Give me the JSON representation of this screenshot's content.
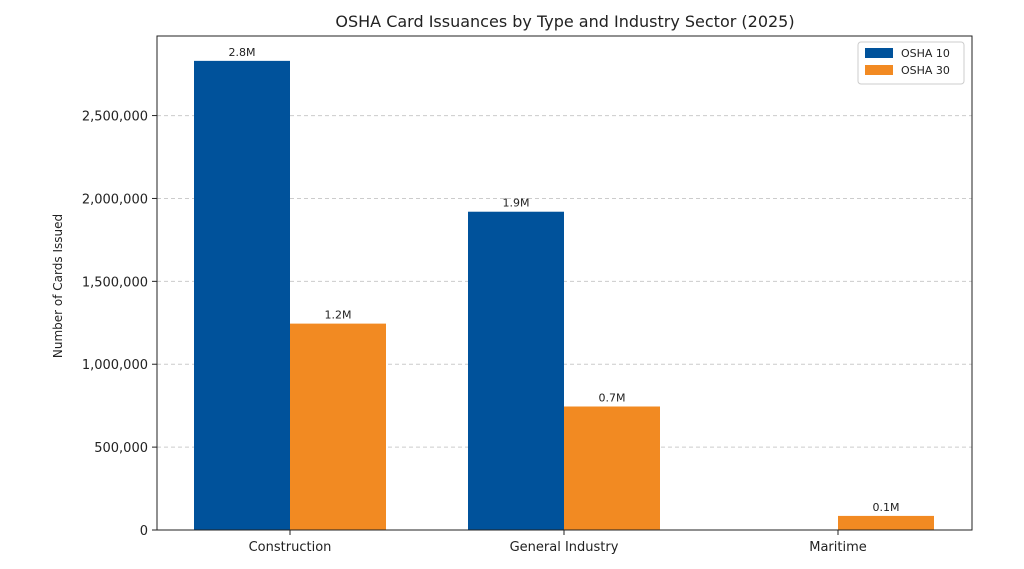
{
  "chart_data": {
    "type": "bar",
    "title": "OSHA Card Issuances by Type and Industry Sector (2025)",
    "xlabel": "",
    "ylabel": "Number of Cards Issued",
    "categories": [
      "Construction",
      "General Industry",
      "Maritime"
    ],
    "series": [
      {
        "name": "OSHA 10",
        "color": "#00529b",
        "values": [
          2830000,
          1920000,
          0
        ],
        "labels": [
          "2.8M",
          "1.9M",
          ""
        ]
      },
      {
        "name": "OSHA 30",
        "color": "#f28a22",
        "values": [
          1245000,
          745000,
          85000
        ],
        "labels": [
          "1.2M",
          "0.7M",
          "0.1M"
        ]
      }
    ],
    "ylim": [
      0,
      2980000
    ],
    "yticks": [
      0,
      500000,
      1000000,
      1500000,
      2000000,
      2500000
    ],
    "ytick_labels": [
      "0",
      "500,000",
      "1,000,000",
      "1,500,000",
      "2,000,000",
      "2,500,000"
    ],
    "grid": true,
    "grid_axis": "y",
    "legend_position": "top-right"
  }
}
